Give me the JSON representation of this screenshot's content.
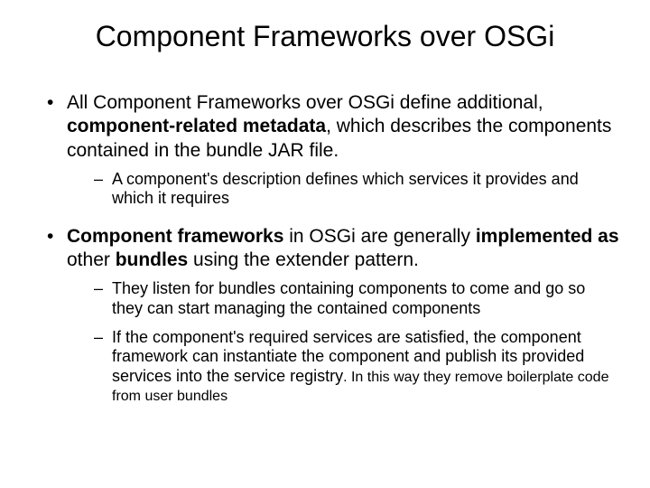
{
  "title": "Component Frameworks over OSGi",
  "b1_pre": "All Component Frameworks over OSGi define additional, ",
  "b1_bold": "component-related metadata",
  "b1_post": ", which describes the components contained in the bundle JAR file.",
  "b1_sub1": "A component's description defines which services it provides and which it requires",
  "b2_bold1": "Component frameworks",
  "b2_mid1": " in OSGi are generally ",
  "b2_bold2": "implemented as",
  "b2_mid2": " other ",
  "b2_bold3": "bundles",
  "b2_post": " using the extender pattern.",
  "b2_sub1": "They listen for bundles containing components to come and go so they can start managing the contained components",
  "b2_sub2_main": "If the component's required services are satisfied, the component framework can instantiate the component and publish its provided services into the service registry",
  "b2_sub2_tail": ". In this way they remove boilerplate code from user bundles"
}
